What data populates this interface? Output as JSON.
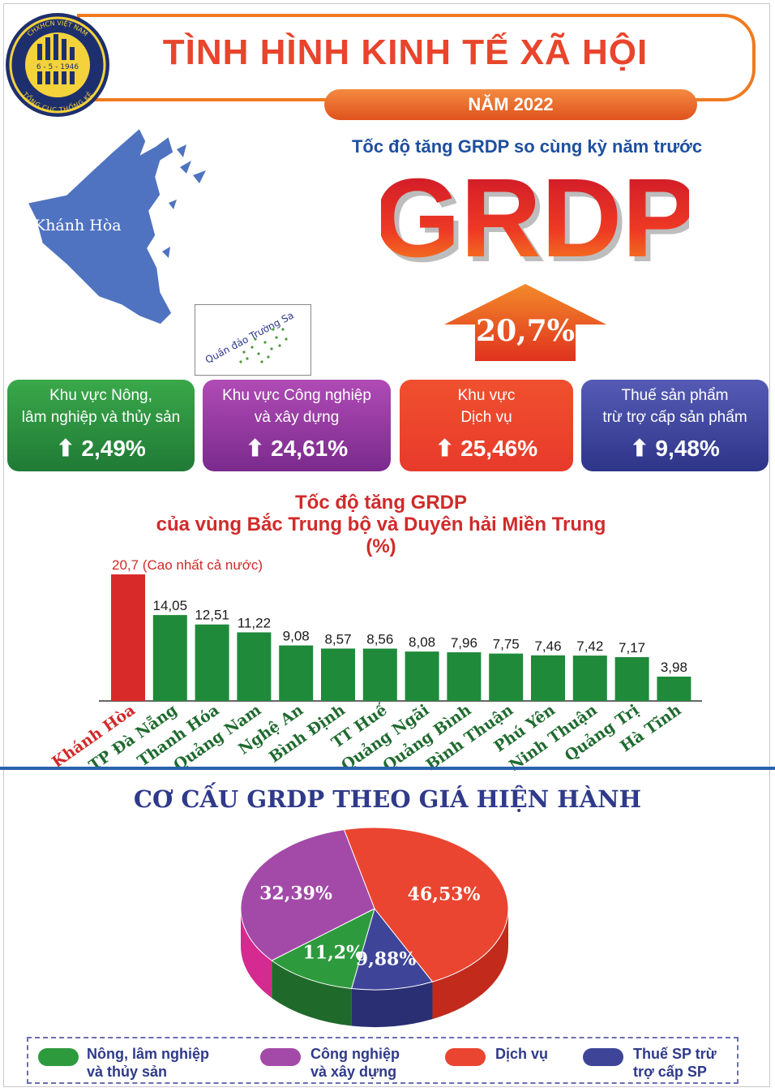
{
  "header": {
    "title": "TÌNH HÌNH KINH TẾ XÃ HỘI",
    "year": "NĂM 2022",
    "logo": {
      "top_text": "CHXHCN VIỆT NAM",
      "date": "6 - 5 - 1946",
      "bottom_text": "TỔNG CỤC THỐNG KÊ",
      "icon": "statistics-office-logo"
    }
  },
  "map": {
    "province": "Khánh Hòa",
    "inset": "Quần đảo Trường Sa",
    "color": "#4f73c0"
  },
  "grdp": {
    "subtitle": "Tốc độ tăng GRDP so cùng kỳ năm trước",
    "word": "GRDP",
    "growth": "20,7%",
    "arrow_icon": "up-arrow-icon"
  },
  "sectors": [
    {
      "label_line1": "Khu vực Nông,",
      "label_line2": "lâm nghiệp và thủy sản",
      "value": "2,49%",
      "arrow": "⬆"
    },
    {
      "label_line1": "Khu vực Công nghiệp",
      "label_line2": "và xây dựng",
      "value": "24,61%",
      "arrow": "⬆"
    },
    {
      "label_line1": "Khu vực",
      "label_line2": "Dịch vụ",
      "value": "25,46%",
      "arrow": "⬆"
    },
    {
      "label_line1": "Thuế sản phẩm",
      "label_line2": "trừ trợ cấp sản phẩm",
      "value": "9,48%",
      "arrow": "⬆"
    }
  ],
  "bar_chart_text": {
    "title_line1": "Tốc độ tăng GRDP",
    "title_line2": "của vùng Bắc Trung bộ và Duyên hải Miền Trung",
    "title_line3": "(%)",
    "top_note": "(Cao nhất cả nước)"
  },
  "pie_chart_text": {
    "title": "CƠ CẤU GRDP THEO GIÁ HIỆN HÀNH"
  },
  "legend": [
    {
      "line1": "Nông, lâm nghiệp",
      "line2": "và thủy sản",
      "color": "#2e9a3e"
    },
    {
      "line1": "Công nghiệp",
      "line2": "và xây dựng",
      "color": "#a34aa8"
    },
    {
      "line1": "Dịch vụ",
      "line2": "",
      "color": "#ea4530"
    },
    {
      "line1": "Thuế SP trừ",
      "line2": "trợ cấp SP",
      "color": "#3e4599"
    }
  ],
  "chart_data": [
    {
      "type": "bar",
      "title": "Tốc độ tăng GRDP của vùng Bắc Trung bộ và Duyên hải Miền Trung (%)",
      "categories": [
        "Khánh Hòa",
        "TP Đà Nẵng",
        "Thanh Hóa",
        "Quảng Nam",
        "Nghệ An",
        "Bình Định",
        "TT Huế",
        "Quảng Ngãi",
        "Quảng Bình",
        "Bình Thuận",
        "Phú Yên",
        "Ninh Thuận",
        "Quảng Trị",
        "Hà Tĩnh"
      ],
      "values": [
        20.7,
        14.05,
        12.51,
        11.22,
        9.08,
        8.57,
        8.56,
        8.08,
        7.96,
        7.75,
        7.46,
        7.42,
        7.17,
        3.98
      ],
      "value_labels": [
        "20,7",
        "14,05",
        "12,51",
        "11,22",
        "9,08",
        "8,57",
        "8,56",
        "8,08",
        "7,96",
        "7,75",
        "7,46",
        "7,42",
        "7,17",
        "3,98"
      ],
      "highlight_index": 0,
      "colors": {
        "highlight": "#d92a2a",
        "default": "#1f8a3a"
      },
      "ylim": [
        0,
        21
      ]
    },
    {
      "type": "pie",
      "title": "CƠ CẤU GRDP THEO GIÁ HIỆN HÀNH",
      "categories": [
        "Dịch vụ",
        "Thuế SP trừ trợ cấp SP",
        "Nông, lâm nghiệp và thủy sản",
        "Công nghiệp và xây dựng"
      ],
      "values": [
        46.53,
        9.88,
        11.2,
        32.39
      ],
      "value_labels": [
        "46,53%",
        "9,88%",
        "11,2%",
        "32,39%"
      ],
      "colors": [
        "#ea4530",
        "#3e4599",
        "#2e9a3e",
        "#a34aa8"
      ]
    }
  ]
}
